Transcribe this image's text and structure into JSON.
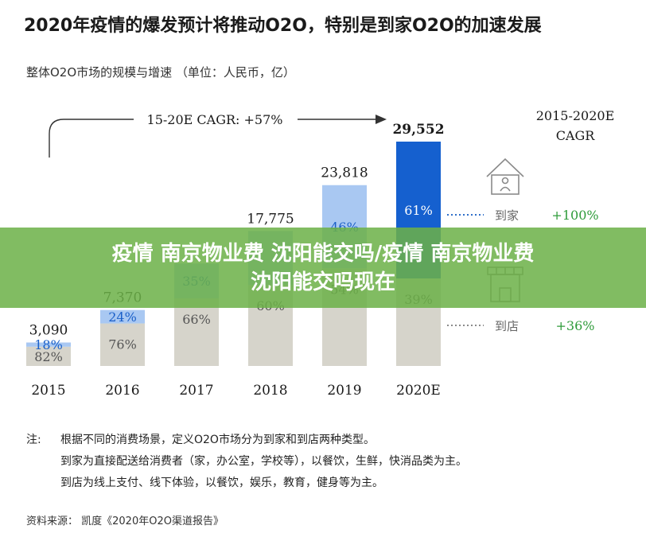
{
  "header": {
    "title": "2020年疫情的爆发预计将推动O2O，特别是到家O2O的加速发展",
    "subtitle": "整体O2O市场的规模与增速 （单位：人民币，亿）"
  },
  "chart_data": {
    "type": "bar",
    "categories": [
      "2015",
      "2016",
      "2017",
      "2018",
      "2019",
      "2020E"
    ],
    "totals": [
      3090,
      7370,
      13500,
      17775,
      23818,
      29552
    ],
    "total_labels": [
      "3,090",
      "7,370",
      "",
      "17,775",
      "23,818",
      "29,552"
    ],
    "series": [
      {
        "name": "到店",
        "share_pct": [
          82,
          76,
          66,
          60,
          54,
          39
        ],
        "labels": [
          "82%",
          "76%",
          "66%",
          "60%",
          "54%",
          "39%"
        ]
      },
      {
        "name": "到家",
        "share_pct": [
          18,
          24,
          35,
          40,
          46,
          61
        ],
        "labels": [
          "18%",
          "24%",
          "35%",
          "",
          "46%",
          "61%"
        ]
      }
    ],
    "ylim": [
      0,
      29552
    ],
    "cagr_arrow_label": "15-20E CAGR: +57%",
    "cagr_header": [
      "2015-2020E",
      "CAGR"
    ],
    "cagr_rows": [
      {
        "label": "到家",
        "value": "+100%",
        "icon": "home-icon"
      },
      {
        "label": "到店",
        "value": "+36%",
        "icon": "store-icon"
      }
    ],
    "colors": {
      "store_bar": "#d6d4cb",
      "home_light": "#a9c8f2",
      "home_dark": "#1560cf",
      "cagr_green": "#2e9b3a",
      "dot_blue": "#2f6fc9"
    }
  },
  "notes": {
    "label": "注:",
    "lines": [
      "根据不同的消费场景，定义O2O市场分为到家和到店两种类型。",
      "到家为直接配送给消费者（家，办公室，学校等），以餐饮，生鲜，快消品类为主。",
      "到店为线上支付、线下体验，以餐饮，娱乐，教育，健身等为主。"
    ]
  },
  "source": "资料来源：  凯度《2020年O2O渠道报告》",
  "banner": {
    "line1": "疫情 南京物业费 沈阳能交吗/疫情 南京物业费",
    "line2": "沈阳能交吗现在"
  }
}
